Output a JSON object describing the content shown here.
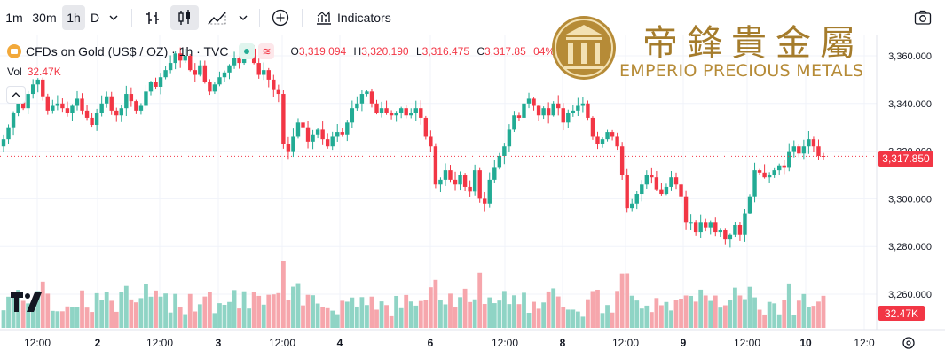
{
  "toolbar": {
    "intervals": [
      "1m",
      "30m",
      "1h",
      "D"
    ],
    "active_interval": "1h",
    "indicators_label": "Indicators"
  },
  "symbol": {
    "name": "CFDs on Gold (US$ / OZ)",
    "interval": "1h",
    "source": "TVC",
    "title": "CFDs on Gold (US$ / OZ) · 1h · TVC",
    "open_label": "O",
    "open": "3,319.094",
    "high_label": "H",
    "high": "3,320.190",
    "low_label": "L",
    "low": "3,316.475",
    "close_label": "C",
    "close": "3,317.85",
    "change_fragment": "04%)"
  },
  "volume": {
    "label": "Vol",
    "value": "32.47K"
  },
  "logo": {
    "chinese": "帝鋒貴金屬",
    "english": "EMPERIO PRECIOUS METALS"
  },
  "colors": {
    "up": "#22ab94",
    "down": "#f23645",
    "up_volume": "#8fd4c5",
    "down_volume": "#f6a6ac",
    "gold": "#a57c2c"
  },
  "current_price_label": "3,317.850",
  "chart_data": {
    "type": "candlestick",
    "title": "CFDs on Gold (US$ / OZ) · 1h · TVC",
    "ylim": [
      3250,
      3375
    ],
    "y_ticks": [
      "3,360.000",
      "3,340.000",
      "3,320.000",
      "3,300.000",
      "3,280.000",
      "3,260.000"
    ],
    "y_tick_values": [
      3360,
      3340,
      3320,
      3300,
      3280,
      3260
    ],
    "x_tick_labels": [
      "12:00",
      "2",
      "12:00",
      "3",
      "12:00",
      "4",
      "6",
      "12:00",
      "8",
      "12:00",
      "9",
      "12:00",
      "10",
      "12:0"
    ],
    "current_price": 3317.85,
    "close_series": [
      3325,
      3330,
      3336,
      3341,
      3338,
      3344,
      3348,
      3350,
      3343,
      3337,
      3339,
      3340,
      3338,
      3336,
      3339,
      3342,
      3337,
      3334,
      3331,
      3336,
      3340,
      3343,
      3337,
      3335,
      3338,
      3344,
      3341,
      3337,
      3339,
      3345,
      3349,
      3347,
      3351,
      3354,
      3357,
      3361,
      3358,
      3360,
      3354,
      3352,
      3356,
      3349,
      3345,
      3348,
      3351,
      3353,
      3356,
      3359,
      3357,
      3360,
      3363,
      3357,
      3352,
      3354,
      3350,
      3346,
      3344,
      3323,
      3320,
      3326,
      3332,
      3330,
      3324,
      3327,
      3329,
      3325,
      3322,
      3326,
      3328,
      3327,
      3332,
      3338,
      3340,
      3344,
      3345,
      3340,
      3336,
      3338,
      3336,
      3335,
      3336,
      3338,
      3335,
      3336,
      3338,
      3334,
      3326,
      3322,
      3306,
      3308,
      3312,
      3308,
      3306,
      3310,
      3305,
      3303,
      3312,
      3300,
      3298,
      3308,
      3313,
      3318,
      3322,
      3329,
      3335,
      3334,
      3340,
      3342,
      3339,
      3335,
      3338,
      3335,
      3340,
      3338,
      3332,
      3336,
      3337,
      3339,
      3340,
      3334,
      3326,
      3323,
      3325,
      3328,
      3326,
      3322,
      3310,
      3296,
      3298,
      3302,
      3306,
      3310,
      3309,
      3304,
      3302,
      3305,
      3309,
      3306,
      3301,
      3290,
      3290,
      3286,
      3290,
      3288,
      3290,
      3286,
      3287,
      3283,
      3285,
      3289,
      3285,
      3294,
      3301,
      3312,
      3311,
      3309,
      3310,
      3312,
      3314,
      3313,
      3320,
      3322,
      3319,
      3322,
      3325,
      3322,
      3318,
      3317.85
    ]
  }
}
